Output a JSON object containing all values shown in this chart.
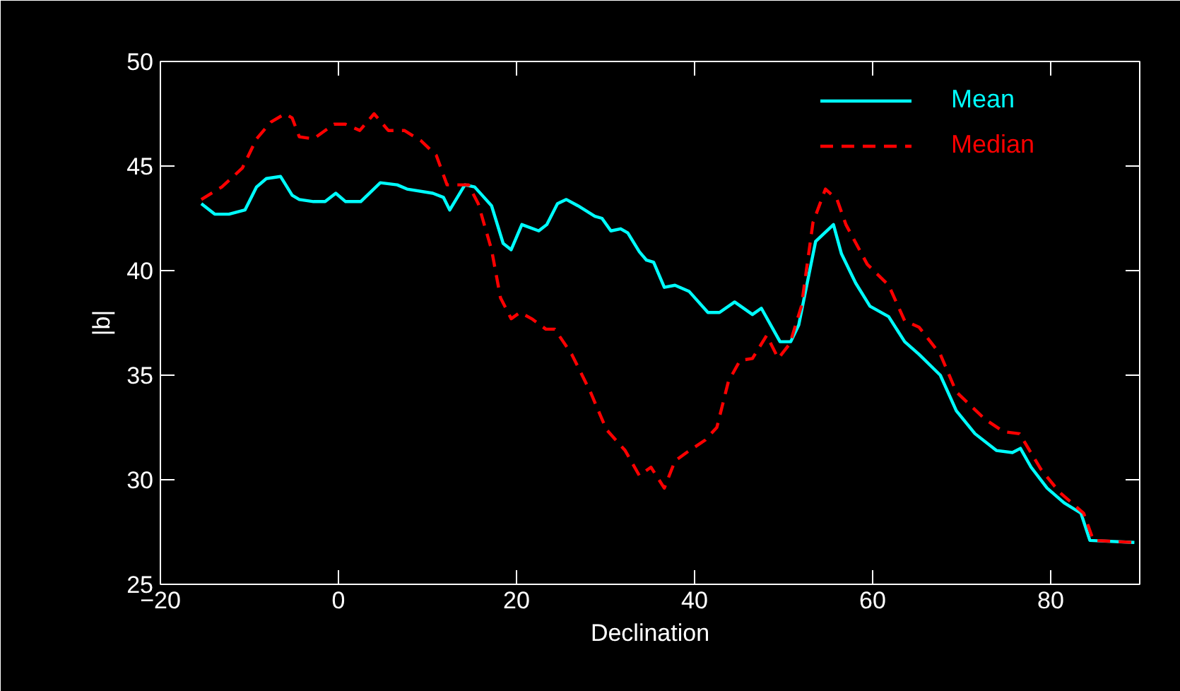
{
  "chart_data": {
    "type": "line",
    "xlabel": "Declination",
    "ylabel": "|b|",
    "xlim": [
      -20,
      90
    ],
    "ylim": [
      25,
      50
    ],
    "xticks": [
      {
        "value": -20,
        "label": "−20"
      },
      0,
      20,
      40,
      60,
      80
    ],
    "yticks": [
      25,
      30,
      35,
      40,
      45,
      50
    ],
    "grid": false,
    "legend": "top right",
    "marker": "none",
    "series": [
      {
        "name": "Mean",
        "color": "#00ffff",
        "line_style": "solid",
        "x": [
          -15.4,
          -13.9,
          -12.3,
          -10.5,
          -9.2,
          -8.1,
          -6.5,
          -5.2,
          -4.4,
          -2.8,
          -1.5,
          -0.3,
          0.8,
          2.5,
          4.7,
          6.6,
          7.7,
          10.6,
          11.8,
          12.5,
          14.2,
          15.3,
          17.2,
          18.5,
          19.4,
          20.6,
          22.5,
          23.4,
          24.6,
          25.6,
          26.9,
          28.8,
          29.6,
          30.6,
          31.7,
          32.5,
          33.8,
          34.6,
          35.4,
          36.6,
          37.8,
          39.4,
          41.5,
          42.8,
          44.5,
          46.5,
          47.5,
          49.6,
          50.8,
          51.7,
          53.6,
          55.6,
          56.5,
          58.1,
          59.7,
          61.8,
          63.6,
          65.2,
          67.6,
          69.4,
          71.5,
          73.9,
          75.7,
          76.6,
          77.8,
          79.6,
          81.5,
          83.4,
          84.4,
          89.4
        ],
        "values": [
          43.2,
          42.7,
          42.7,
          42.9,
          44.0,
          44.4,
          44.5,
          43.6,
          43.4,
          43.3,
          43.3,
          43.7,
          43.3,
          43.3,
          44.2,
          44.1,
          43.9,
          43.7,
          43.5,
          42.9,
          44.1,
          44.0,
          43.1,
          41.3,
          41.0,
          42.2,
          41.9,
          42.2,
          43.2,
          43.4,
          43.1,
          42.6,
          42.5,
          41.9,
          42.0,
          41.8,
          40.9,
          40.5,
          40.4,
          39.2,
          39.3,
          39.0,
          38.0,
          38.0,
          38.5,
          37.9,
          38.2,
          36.6,
          36.6,
          37.4,
          41.4,
          42.2,
          40.8,
          39.4,
          38.3,
          37.8,
          36.6,
          36.0,
          35.0,
          33.3,
          32.2,
          31.4,
          31.3,
          31.5,
          30.6,
          29.6,
          28.9,
          28.4,
          27.1,
          27.0
        ]
      },
      {
        "name": "Median",
        "color": "#ff0000",
        "line_style": "dashed",
        "x": [
          -15.4,
          -13.1,
          -10.8,
          -9.2,
          -7.6,
          -6.0,
          -5.2,
          -4.4,
          -2.8,
          -0.5,
          0.8,
          2.4,
          4.0,
          5.6,
          7.4,
          9.3,
          11.0,
          12.2,
          14.6,
          15.7,
          17.2,
          18.2,
          19.4,
          20.4,
          21.7,
          23.3,
          24.3,
          26.2,
          28.3,
          30.1,
          32.2,
          33.8,
          35.1,
          36.6,
          37.8,
          39.1,
          41.2,
          42.5,
          43.8,
          45.1,
          46.5,
          48.1,
          49.4,
          50.7,
          52.0,
          53.3,
          54.7,
          56.0,
          57.0,
          59.4,
          61.8,
          63.6,
          65.2,
          67.6,
          69.4,
          72.6,
          74.7,
          76.5,
          78.9,
          81.0,
          83.7,
          84.8,
          89.4
        ],
        "values": [
          43.4,
          44.0,
          44.9,
          46.3,
          47.1,
          47.5,
          47.3,
          46.4,
          46.3,
          47.0,
          47.0,
          46.7,
          47.5,
          46.7,
          46.7,
          46.2,
          45.5,
          44.1,
          44.1,
          43.2,
          41.0,
          38.7,
          37.7,
          38.0,
          37.7,
          37.2,
          37.2,
          36.0,
          34.2,
          32.4,
          31.4,
          30.2,
          30.6,
          29.6,
          30.9,
          31.3,
          31.9,
          32.5,
          34.7,
          35.7,
          35.8,
          36.9,
          35.8,
          36.5,
          38.3,
          42.3,
          43.9,
          43.4,
          42.2,
          40.3,
          39.3,
          37.6,
          37.3,
          36.0,
          34.2,
          32.9,
          32.3,
          32.2,
          30.5,
          29.4,
          28.4,
          27.1,
          27.0
        ]
      }
    ]
  }
}
